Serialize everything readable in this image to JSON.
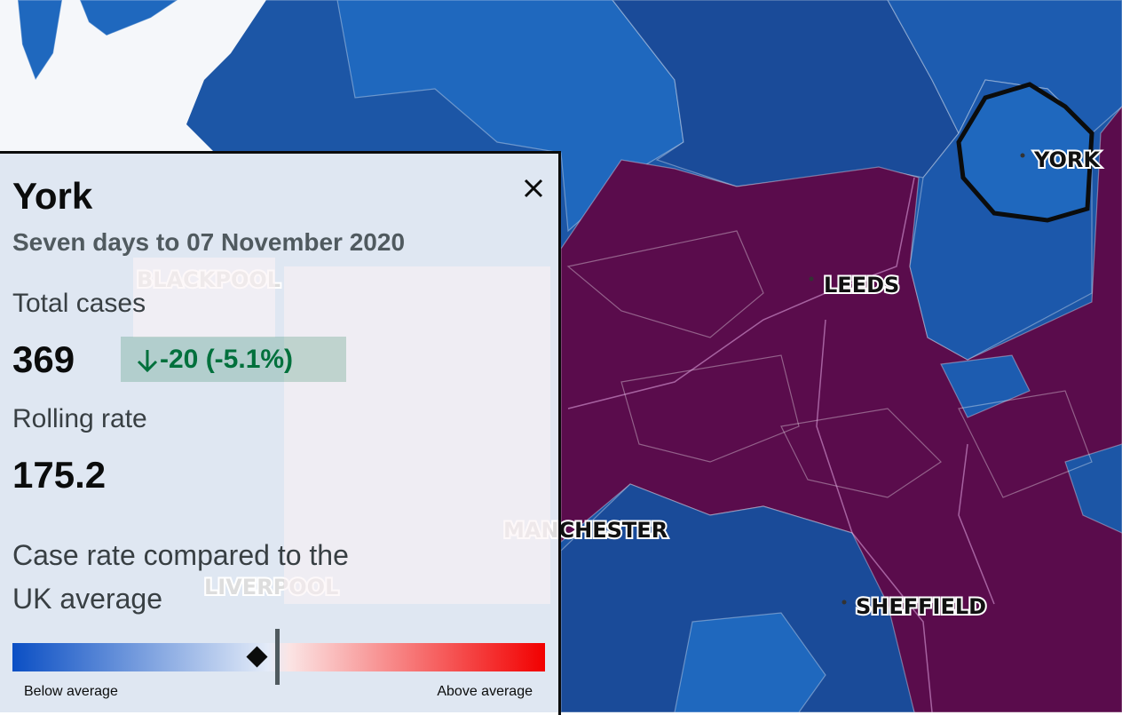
{
  "panel": {
    "title": "York",
    "subtitle": "Seven days to 07 November 2020",
    "total_cases_label": "Total cases",
    "total_cases": 369,
    "change": "-20 (-5.1%)",
    "rolling_rate_label": "Rolling rate",
    "rolling_rate": 175.2,
    "comparison_label": "Case rate compared to the UK average",
    "legend_low": "Below average",
    "legend_high": "Above average"
  },
  "map": {
    "labels": [
      "YORK",
      "LEEDS",
      "MANCHESTER",
      "SHEFFIELD",
      "BLACKPOOL",
      "LIVERPOOL"
    ]
  }
}
